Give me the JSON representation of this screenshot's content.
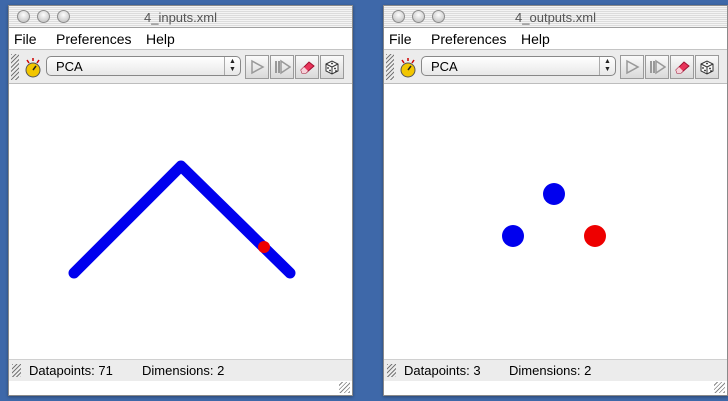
{
  "colors": {
    "desktop": "#3e68a9",
    "series": "#0000ee",
    "highlight": "#ee0000"
  },
  "windows": [
    {
      "title": "4_inputs.xml",
      "menu": [
        "File",
        "Preferences",
        "Help"
      ],
      "algorithm": "PCA",
      "status": {
        "datapoints": "Datapoints: 71",
        "dimensions": "Dimensions: 2"
      }
    },
    {
      "title": "4_outputs.xml",
      "menu": [
        "File",
        "Preferences",
        "Help"
      ],
      "algorithm": "PCA",
      "status": {
        "datapoints": "Datapoints: 3",
        "dimensions": "Dimensions: 2"
      }
    }
  ],
  "icons": {
    "toolbar": [
      "clock-icon",
      "play-icon",
      "step-icon",
      "eraser-icon",
      "dice-icon"
    ]
  }
}
